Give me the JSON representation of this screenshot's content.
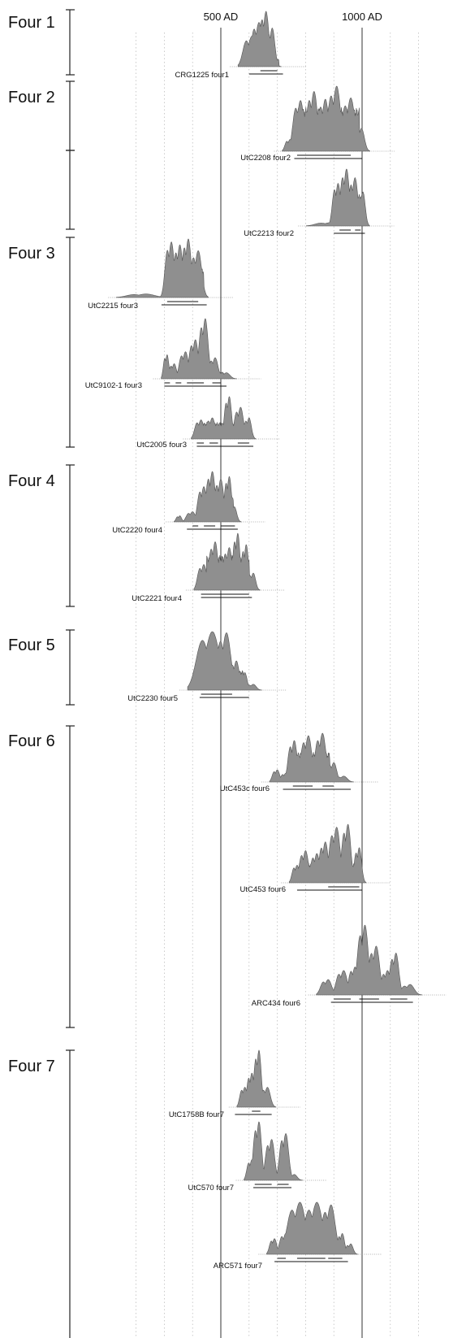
{
  "chart_data": {
    "type": "area",
    "x_unit": "AD",
    "reference_lines": [
      {
        "x": 500,
        "label": "500 AD"
      },
      {
        "x": 1000,
        "label": "1000 AD"
      }
    ],
    "groups": [
      {
        "label": "Four 1",
        "samples": [
          {
            "name": "CRG1225 four1",
            "peaks": [
              {
                "x": 610,
                "h": 0.55,
                "w": 14
              },
              {
                "x": 635,
                "h": 0.8,
                "w": 12
              },
              {
                "x": 660,
                "h": 1.0,
                "w": 10
              },
              {
                "x": 682,
                "h": 0.7,
                "w": 9
              }
            ],
            "floor": 0.12,
            "range": [
              580,
              705
            ],
            "ranges": [
              [
                [
                  640,
                  700
                ]
              ],
              [
                [
                  600,
                  720
                ]
              ]
            ]
          }
        ]
      },
      {
        "label": "Four 2",
        "samples": [
          {
            "name": "UtC2208 four2",
            "peaks": [
              {
                "x": 745,
                "h": 0.18,
                "w": 8
              },
              {
                "x": 782,
                "h": 0.78,
                "w": 12
              },
              {
                "x": 830,
                "h": 0.92,
                "w": 12
              },
              {
                "x": 870,
                "h": 0.8,
                "w": 12
              },
              {
                "x": 910,
                "h": 1.0,
                "w": 14
              },
              {
                "x": 960,
                "h": 0.82,
                "w": 14
              },
              {
                "x": 998,
                "h": 0.35,
                "w": 10
              }
            ],
            "floor": 0.6,
            "range": [
              770,
              990
            ],
            "ranges": [
              [
                [
                  770,
                  960
                ]
              ],
              [
                [
                  760,
                  1000
                ]
              ]
            ]
          }
        ]
      },
      {
        "label": "",
        "samples": [
          {
            "name": "UtC2213 four2",
            "peaks": [
              {
                "x": 890,
                "h": 0.06,
                "w": 25
              },
              {
                "x": 915,
                "h": 0.75,
                "w": 9
              },
              {
                "x": 945,
                "h": 1.0,
                "w": 10
              },
              {
                "x": 975,
                "h": 0.85,
                "w": 10
              },
              {
                "x": 1003,
                "h": 0.6,
                "w": 8
              }
            ],
            "floor": 0.5,
            "range": [
              920,
              1000
            ],
            "ranges": [
              [
                [
                  920,
                  960
                ],
                [
                  975,
                  995
                ]
              ],
              [
                [
                  900,
                  1010
                ]
              ]
            ]
          }
        ]
      },
      {
        "label": "Four 3",
        "samples": [
          {
            "name": "UtC2215 four3",
            "peaks": [
              {
                "x": 235,
                "h": 0.06,
                "w": 30
              },
              {
                "x": 325,
                "h": 0.95,
                "w": 10
              },
              {
                "x": 355,
                "h": 0.9,
                "w": 10
              },
              {
                "x": 385,
                "h": 1.0,
                "w": 10
              },
              {
                "x": 420,
                "h": 0.8,
                "w": 12
              }
            ],
            "floor": 0.45,
            "range": [
              305,
              440
            ],
            "ranges": [
              [
                [
                  310,
                  420
                ]
              ],
              [
                [
                  290,
                  450
                ]
              ]
            ]
          },
          {
            "name": "UtC9102-1 four3",
            "peaks": [
              {
                "x": 310,
                "h": 0.4,
                "w": 6
              },
              {
                "x": 335,
                "h": 0.25,
                "w": 8
              },
              {
                "x": 375,
                "h": 0.45,
                "w": 10
              },
              {
                "x": 410,
                "h": 0.65,
                "w": 10
              },
              {
                "x": 445,
                "h": 1.0,
                "w": 10
              },
              {
                "x": 480,
                "h": 0.35,
                "w": 10
              },
              {
                "x": 520,
                "h": 0.1,
                "w": 12
              }
            ],
            "floor": 0.1,
            "range": [
              325,
              510
            ],
            "ranges": [
              [
                [
                  300,
                  320
                ],
                [
                  340,
                  360
                ],
                [
                  380,
                  440
                ],
                [
                  470,
                  500
                ]
              ],
              [
                [
                  300,
                  520
                ]
              ]
            ]
          },
          {
            "name": "UtC2005 four3",
            "peaks": [
              {
                "x": 430,
                "h": 0.45,
                "w": 10
              },
              {
                "x": 470,
                "h": 0.5,
                "w": 10
              },
              {
                "x": 530,
                "h": 1.0,
                "w": 8
              },
              {
                "x": 570,
                "h": 0.75,
                "w": 10
              },
              {
                "x": 600,
                "h": 0.5,
                "w": 8
              }
            ],
            "floor": 0.35,
            "range": [
              430,
              600
            ],
            "ranges": [
              [
                [
                  415,
                  440
                ],
                [
                  460,
                  490
                ],
                [
                  560,
                  600
                ]
              ],
              [
                [
                  415,
                  615
                ]
              ]
            ]
          }
        ]
      },
      {
        "label": "Four 4",
        "samples": [
          {
            "name": "UtC2220 four4",
            "peaks": [
              {
                "x": 355,
                "h": 0.12,
                "w": 6
              },
              {
                "x": 400,
                "h": 0.2,
                "w": 10
              },
              {
                "x": 440,
                "h": 0.7,
                "w": 10
              },
              {
                "x": 470,
                "h": 1.0,
                "w": 10
              },
              {
                "x": 500,
                "h": 0.85,
                "w": 10
              },
              {
                "x": 530,
                "h": 0.9,
                "w": 8
              },
              {
                "x": 548,
                "h": 0.3,
                "w": 8
              }
            ],
            "floor": 0.45,
            "range": [
              435,
              545
            ],
            "ranges": [
              [
                [
                  400,
                  420
                ],
                [
                  440,
                  480
                ],
                [
                  500,
                  550
                ]
              ],
              [
                [
                  380,
                  560
                ]
              ]
            ]
          },
          {
            "name": "UtC2221 four4",
            "peaks": [
              {
                "x": 440,
                "h": 0.45,
                "w": 10
              },
              {
                "x": 480,
                "h": 0.85,
                "w": 10
              },
              {
                "x": 530,
                "h": 0.75,
                "w": 10
              },
              {
                "x": 560,
                "h": 1.0,
                "w": 8
              },
              {
                "x": 590,
                "h": 0.8,
                "w": 8
              },
              {
                "x": 615,
                "h": 0.3,
                "w": 8
              }
            ],
            "floor": 0.55,
            "range": [
              450,
              600
            ],
            "ranges": [
              [
                [
                  430,
                  600
                ]
              ],
              [
                [
                  430,
                  610
                ]
              ]
            ]
          }
        ]
      },
      {
        "label": "Four 5",
        "samples": [
          {
            "name": "UtC2230 four5",
            "peaks": [
              {
                "x": 430,
                "h": 0.3,
                "w": 8
              },
              {
                "x": 470,
                "h": 1.0,
                "w": 25
              },
              {
                "x": 520,
                "h": 0.98,
                "w": 15
              },
              {
                "x": 555,
                "h": 0.5,
                "w": 10
              },
              {
                "x": 585,
                "h": 0.3,
                "w": 8
              },
              {
                "x": 615,
                "h": 0.1,
                "w": 10
              }
            ],
            "floor": 0.3,
            "range": [
              440,
              580
            ],
            "ranges": [
              [
                [
                  430,
                  540
                ]
              ],
              [
                [
                  425,
                  600
                ]
              ]
            ]
          }
        ]
      },
      {
        "label": "Four 6",
        "samples": [
          {
            "name": "UtC453c four6",
            "peaks": [
              {
                "x": 700,
                "h": 0.25,
                "w": 8
              },
              {
                "x": 730,
                "h": 0.18,
                "w": 8
              },
              {
                "x": 760,
                "h": 0.85,
                "w": 10
              },
              {
                "x": 810,
                "h": 0.95,
                "w": 12
              },
              {
                "x": 860,
                "h": 1.0,
                "w": 12
              },
              {
                "x": 900,
                "h": 0.4,
                "w": 10
              },
              {
                "x": 935,
                "h": 0.12,
                "w": 12
              }
            ],
            "floor": 0.55,
            "range": [
              755,
              885
            ],
            "ranges": [
              [
                [
                  755,
                  825
                ],
                [
                  860,
                  900
                ]
              ],
              [
                [
                  720,
                  960
                ]
              ]
            ]
          },
          {
            "name": "UtC453 four6",
            "peaks": [
              {
                "x": 770,
                "h": 0.3,
                "w": 8
              },
              {
                "x": 800,
                "h": 0.55,
                "w": 10
              },
              {
                "x": 840,
                "h": 0.5,
                "w": 10
              },
              {
                "x": 870,
                "h": 0.7,
                "w": 10
              },
              {
                "x": 910,
                "h": 0.95,
                "w": 12
              },
              {
                "x": 950,
                "h": 1.0,
                "w": 10
              },
              {
                "x": 990,
                "h": 0.6,
                "w": 8
              }
            ],
            "floor": 0.3,
            "range": [
              785,
              995
            ],
            "ranges": [
              [
                [
                  880,
                  990
                ]
              ],
              [
                [
                  770,
                  1000
                ]
              ]
            ]
          },
          {
            "name": "ARC434 four6",
            "peaks": [
              {
                "x": 880,
                "h": 0.22,
                "w": 12
              },
              {
                "x": 935,
                "h": 0.35,
                "w": 12
              },
              {
                "x": 975,
                "h": 0.4,
                "w": 10
              },
              {
                "x": 1010,
                "h": 1.0,
                "w": 12
              },
              {
                "x": 1050,
                "h": 0.7,
                "w": 12
              },
              {
                "x": 1090,
                "h": 0.35,
                "w": 10
              },
              {
                "x": 1120,
                "h": 0.6,
                "w": 10
              },
              {
                "x": 1170,
                "h": 0.15,
                "w": 14
              }
            ],
            "floor": 0.05,
            "range": [
              880,
              1180
            ],
            "ranges": [
              [
                [
                  900,
                  960
                ],
                [
                  990,
                  1060
                ],
                [
                  1100,
                  1160
                ]
              ],
              [
                [
                  890,
                  1180
                ]
              ]
            ]
          }
        ]
      },
      {
        "label": "Four 7",
        "samples": [
          {
            "name": "UtC1758B four7",
            "peaks": [
              {
                "x": 585,
                "h": 0.35,
                "w": 8
              },
              {
                "x": 610,
                "h": 0.6,
                "w": 8
              },
              {
                "x": 635,
                "h": 1.0,
                "w": 8
              },
              {
                "x": 665,
                "h": 0.35,
                "w": 10
              }
            ],
            "floor": 0.05,
            "range": [
              590,
              660
            ],
            "ranges": [
              [
                [
                  610,
                  640
                ]
              ],
              [
                [
                  550,
                  680
                ]
              ]
            ]
          },
          {
            "name": "UtC570 four7",
            "peaks": [
              {
                "x": 610,
                "h": 0.35,
                "w": 8
              },
              {
                "x": 635,
                "h": 1.0,
                "w": 9
              },
              {
                "x": 680,
                "h": 0.7,
                "w": 10
              },
              {
                "x": 730,
                "h": 0.8,
                "w": 10
              },
              {
                "x": 760,
                "h": 0.1,
                "w": 10
              }
            ],
            "floor": 0.08,
            "range": [
              620,
              740
            ],
            "ranges": [
              [
                [
                  620,
                  680
                ],
                [
                  700,
                  740
                ]
              ],
              [
                [
                  615,
                  750
                ]
              ]
            ]
          },
          {
            "name": "ARC571 four7",
            "peaks": [
              {
                "x": 690,
                "h": 0.3,
                "w": 8
              },
              {
                "x": 730,
                "h": 0.4,
                "w": 10
              },
              {
                "x": 780,
                "h": 1.0,
                "w": 20
              },
              {
                "x": 840,
                "h": 1.0,
                "w": 20
              },
              {
                "x": 890,
                "h": 0.95,
                "w": 15
              },
              {
                "x": 930,
                "h": 0.4,
                "w": 8
              },
              {
                "x": 960,
                "h": 0.2,
                "w": 8
              }
            ],
            "floor": 0.2,
            "range": [
              760,
              900
            ],
            "ranges": [
              [
                [
                  700,
                  730
                ],
                [
                  770,
                  870
                ],
                [
                  880,
                  930
                ]
              ],
              [
                [
                  690,
                  950
                ]
              ]
            ]
          }
        ]
      }
    ]
  }
}
